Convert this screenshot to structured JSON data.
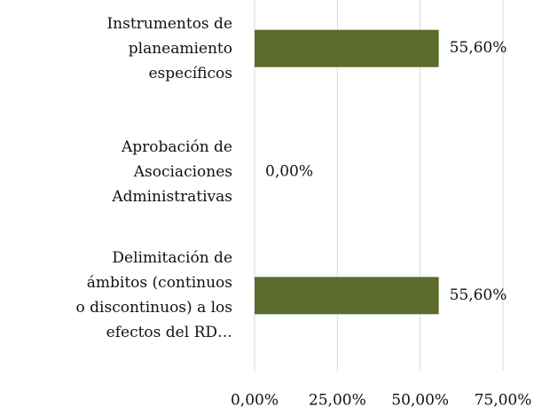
{
  "chart_data": {
    "type": "bar",
    "orientation": "horizontal",
    "categories": [
      "Instrumentos de\nplaneamiento\nespecíficos",
      "Aprobación de\nAsociaciones\nAdministrativas",
      "Delimitación de\námbitos (continuos\no discontinuos) a los\nefectos del RD…"
    ],
    "values": [
      55.6,
      0,
      55.6
    ],
    "value_labels": [
      "55,60%",
      "0,00%",
      "55,60%"
    ],
    "color": "#5a6b2a",
    "xlim": [
      0,
      75
    ],
    "xticks": [
      {
        "value": 0,
        "label": "0,00%"
      },
      {
        "value": 25,
        "label": "25,00%"
      },
      {
        "value": 50,
        "label": "50,00%"
      },
      {
        "value": 75,
        "label": "75,00%"
      }
    ],
    "grid": true
  }
}
